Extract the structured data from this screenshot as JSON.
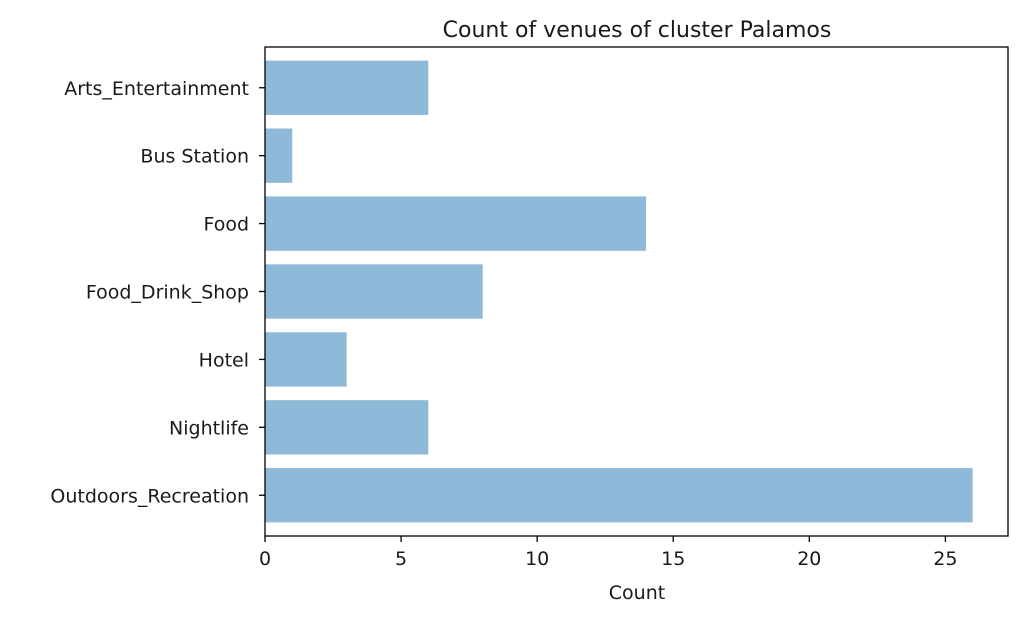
{
  "chart_data": {
    "type": "bar",
    "orientation": "horizontal",
    "title": "Count of venues of cluster Palamos",
    "xlabel": "Count",
    "ylabel": "",
    "categories": [
      "Outdoors_Recreation",
      "Nightlife",
      "Hotel",
      "Food_Drink_Shop",
      "Food",
      "Bus Station",
      "Arts_Entertainment"
    ],
    "values": [
      26,
      6,
      3,
      8,
      14,
      1,
      6
    ],
    "xlim": [
      0,
      27.3
    ],
    "xticks": [
      0,
      5,
      10,
      15,
      20,
      25
    ],
    "grid": false,
    "bar_color": "#8fb9d9"
  }
}
